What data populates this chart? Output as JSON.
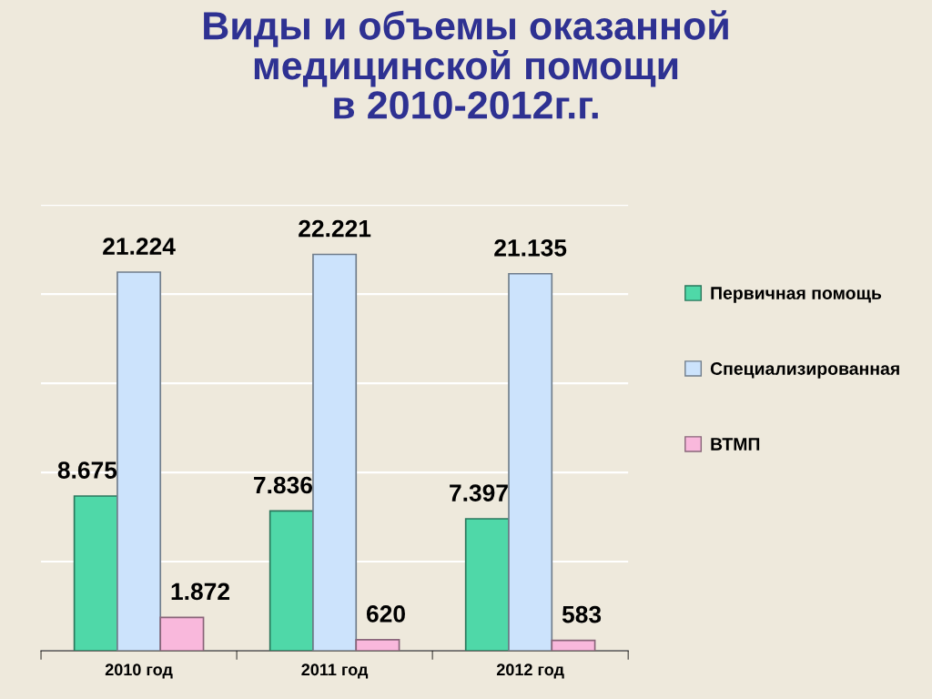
{
  "chart_data": {
    "type": "bar",
    "title": "Виды и объемы оказанной\nмедицинской помощи\nв 2010-2012г.г.",
    "categories": [
      "2010 год",
      "2011 год",
      "2012 год"
    ],
    "series": [
      {
        "name": "Первичная помощь",
        "color": "#4fd8a8",
        "values": [
          8675,
          7836,
          7397
        ],
        "value_labels": [
          "8.675",
          "7.836",
          "7.397"
        ]
      },
      {
        "name": "Специализированная",
        "color": "#cce3fc",
        "values": [
          21224,
          22221,
          21135
        ],
        "value_labels": [
          "21.224",
          "22.221",
          "21.135"
        ]
      },
      {
        "name": "ВТМП",
        "color": "#f9b8dc",
        "values": [
          1872,
          620,
          583
        ],
        "value_labels": [
          "1.872",
          "620",
          "583"
        ]
      }
    ],
    "ylim": [
      0,
      25000
    ],
    "yticks": [
      {
        "value": 0,
        "label": null
      },
      {
        "value": 5000,
        "label": null
      },
      {
        "value": 10000,
        "label": null
      },
      {
        "value": 15000,
        "label": null
      },
      {
        "value": 20000,
        "label": null
      },
      {
        "value": 25000,
        "label": null
      }
    ],
    "grid": "y",
    "legend": "right",
    "tick_labels": "x"
  }
}
